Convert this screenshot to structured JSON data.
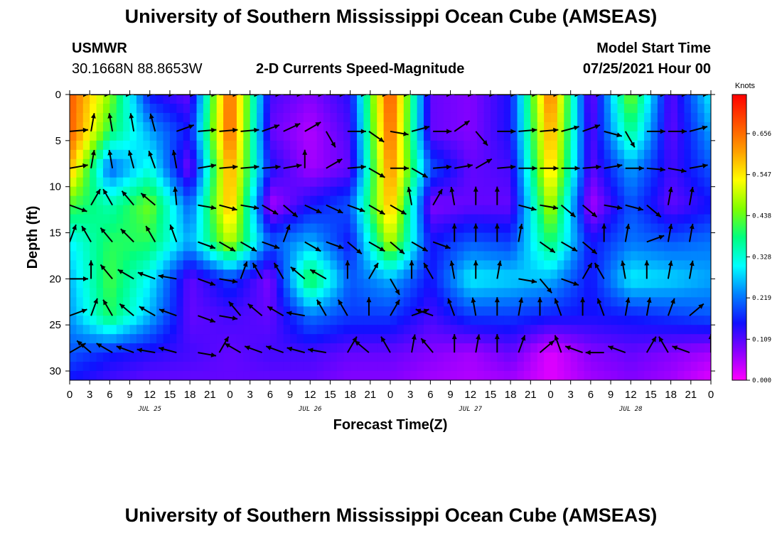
{
  "header": {
    "title_top": "University of Southern Mississippi Ocean Cube (AMSEAS)",
    "title_bottom": "University of Southern Mississippi Ocean Cube (AMSEAS)",
    "station": "USMWR",
    "location": "30.1668N  88.8653W",
    "product": "2-D Currents Speed-Magnitude",
    "model_start_label": "Model Start Time",
    "model_start_value": "07/25/2021 Hour 00"
  },
  "chart_data": {
    "type": "heatmap",
    "title": "2-D Currents Speed-Magnitude",
    "xlabel": "Forecast Time(Z)",
    "ylabel": "Depth (ft)",
    "x_unit": "hours from model start (07/25/2021 00Z)",
    "xlim": [
      0,
      96
    ],
    "ylim": [
      0,
      31
    ],
    "y_inverted": true,
    "x_ticks": [
      0,
      3,
      6,
      9,
      12,
      15,
      18,
      21,
      24,
      27,
      30,
      33,
      36,
      39,
      42,
      45,
      48,
      51,
      54,
      57,
      60,
      63,
      66,
      69,
      72,
      75,
      78,
      81,
      84,
      87,
      90,
      93,
      96
    ],
    "x_tick_labels": [
      "0",
      "3",
      "6",
      "9",
      "12",
      "15",
      "18",
      "21",
      "0",
      "3",
      "6",
      "9",
      "12",
      "15",
      "18",
      "21",
      "0",
      "3",
      "6",
      "9",
      "12",
      "15",
      "18",
      "21",
      "0",
      "3",
      "6",
      "9",
      "12",
      "15",
      "18",
      "21",
      "0"
    ],
    "date_labels": [
      {
        "label": "JUL 25",
        "x": 12
      },
      {
        "label": "JUL 26",
        "x": 36
      },
      {
        "label": "JUL 27",
        "x": 60
      },
      {
        "label": "JUL 28",
        "x": 84
      }
    ],
    "y_ticks": [
      0,
      5,
      10,
      15,
      20,
      25,
      30
    ],
    "colorbar": {
      "unit": "Knots",
      "ticks": [
        0.0,
        0.109,
        0.219,
        0.328,
        0.438,
        0.547,
        0.656
      ],
      "tick_labels": [
        "0.000",
        "0.109",
        "0.219",
        "0.328",
        "0.438",
        "0.547",
        "0.656"
      ],
      "range": [
        0,
        0.76
      ],
      "colors": [
        "#ff00ff",
        "#8a00ff",
        "#1010ff",
        "#0080ff",
        "#00ffff",
        "#00ff80",
        "#80ff00",
        "#ffff00",
        "#ffa000",
        "#ff5000",
        "#ff0000"
      ]
    },
    "grid": false,
    "legend": "colorbar right",
    "times": [
      0,
      6,
      12,
      18,
      24,
      30,
      36,
      42,
      48,
      54,
      60,
      66,
      72,
      78,
      84,
      90,
      96
    ],
    "depths": [
      0,
      4,
      8,
      12,
      16,
      20,
      24,
      28,
      31
    ],
    "speed_knots": [
      [
        0.68,
        0.46,
        0.15,
        0.1,
        0.68,
        0.12,
        0.08,
        0.14,
        0.7,
        0.1,
        0.08,
        0.15,
        0.66,
        0.08,
        0.46,
        0.1,
        0.3
      ],
      [
        0.68,
        0.4,
        0.25,
        0.15,
        0.68,
        0.1,
        0.05,
        0.12,
        0.68,
        0.1,
        0.08,
        0.15,
        0.62,
        0.1,
        0.38,
        0.1,
        0.25
      ],
      [
        0.6,
        0.2,
        0.32,
        0.08,
        0.62,
        0.15,
        0.06,
        0.1,
        0.64,
        0.2,
        0.1,
        0.12,
        0.58,
        0.1,
        0.25,
        0.12,
        0.2
      ],
      [
        0.42,
        0.35,
        0.45,
        0.2,
        0.6,
        0.05,
        0.15,
        0.2,
        0.6,
        0.08,
        0.1,
        0.1,
        0.5,
        0.05,
        0.2,
        0.1,
        0.15
      ],
      [
        0.3,
        0.4,
        0.4,
        0.25,
        0.5,
        0.2,
        0.26,
        0.15,
        0.5,
        0.15,
        0.2,
        0.18,
        0.4,
        0.15,
        0.22,
        0.2,
        0.22
      ],
      [
        0.26,
        0.42,
        0.3,
        0.1,
        0.18,
        0.08,
        0.42,
        0.2,
        0.26,
        0.15,
        0.3,
        0.28,
        0.26,
        0.15,
        0.3,
        0.28,
        0.25
      ],
      [
        0.24,
        0.4,
        0.26,
        0.1,
        0.12,
        0.1,
        0.22,
        0.18,
        0.18,
        0.12,
        0.18,
        0.18,
        0.16,
        0.15,
        0.16,
        0.18,
        0.2
      ],
      [
        0.2,
        0.16,
        0.14,
        0.12,
        0.1,
        0.12,
        0.12,
        0.1,
        0.1,
        0.08,
        0.06,
        0.1,
        0.02,
        0.08,
        0.1,
        0.08,
        0.06
      ],
      [
        0.15,
        0.12,
        0.1,
        0.1,
        0.1,
        0.1,
        0.1,
        0.08,
        0.08,
        0.06,
        0.05,
        0.06,
        0.02,
        0.06,
        0.08,
        0.06,
        0.02
      ]
    ],
    "vector_rows": [
      {
        "depth": 0,
        "angles": [
          0,
          0,
          0,
          0,
          0,
          0,
          0,
          0,
          0,
          0,
          0,
          0,
          0,
          0,
          0,
          0,
          0,
          0,
          0,
          0,
          0,
          0,
          0,
          0,
          0,
          0,
          0,
          0,
          0,
          0,
          0
        ]
      },
      {
        "depth": 4,
        "angles": [
          5,
          80,
          100,
          100,
          105,
          20,
          5,
          5,
          5,
          20,
          25,
          30,
          300,
          0,
          325,
          350,
          15,
          0,
          35,
          310,
          0,
          5,
          5,
          15,
          20,
          345,
          300,
          0,
          0,
          15,
          0
        ]
      },
      {
        "depth": 8,
        "angles": [
          10,
          80,
          100,
          105,
          110,
          100,
          10,
          5,
          5,
          5,
          10,
          90,
          30,
          5,
          330,
          0,
          330,
          5,
          10,
          30,
          5,
          0,
          0,
          0,
          5,
          10,
          0,
          355,
          350,
          10,
          20
        ]
      },
      {
        "depth": 12,
        "angles": [
          340,
          60,
          120,
          130,
          140,
          95,
          350,
          345,
          350,
          330,
          320,
          335,
          335,
          340,
          330,
          330,
          100,
          60,
          100,
          90,
          90,
          345,
          350,
          320,
          320,
          350,
          345,
          320,
          80,
          80,
          350
        ]
      },
      {
        "depth": 16,
        "angles": [
          70,
          120,
          130,
          135,
          120,
          110,
          340,
          330,
          330,
          340,
          70,
          330,
          340,
          320,
          330,
          320,
          330,
          340,
          90,
          90,
          90,
          80,
          325,
          330,
          320,
          90,
          80,
          20,
          80,
          80,
          20
        ]
      },
      {
        "depth": 20,
        "angles": [
          0,
          90,
          130,
          150,
          160,
          170,
          340,
          350,
          70,
          120,
          120,
          140,
          150,
          90,
          60,
          300,
          90,
          120,
          100,
          90,
          80,
          350,
          310,
          340,
          60,
          120,
          100,
          90,
          80,
          80,
          50
        ]
      },
      {
        "depth": 24,
        "angles": [
          20,
          70,
          120,
          140,
          150,
          160,
          340,
          350,
          130,
          140,
          150,
          170,
          120,
          120,
          90,
          60,
          20,
          160,
          110,
          100,
          90,
          80,
          90,
          110,
          90,
          110,
          80,
          80,
          70,
          40,
          30
        ]
      },
      {
        "depth": 28,
        "angles": [
          30,
          140,
          150,
          160,
          170,
          165,
          350,
          60,
          150,
          160,
          160,
          165,
          170,
          60,
          140,
          120,
          80,
          130,
          90,
          80,
          90,
          70,
          40,
          110,
          160,
          180,
          160,
          60,
          120,
          160,
          90
        ]
      }
    ]
  }
}
